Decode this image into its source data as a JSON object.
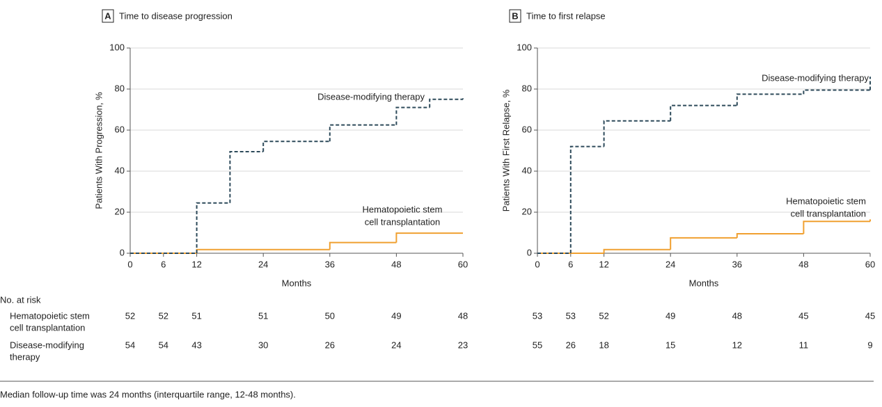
{
  "chart_data": [
    {
      "type": "step",
      "panel": "A",
      "title": "Time to disease progression",
      "x_label": "Months",
      "y_label": "Patients With Progression, %",
      "xlim": [
        0,
        60
      ],
      "xticks": [
        0,
        6,
        12,
        24,
        36,
        48,
        60
      ],
      "ylim": [
        0,
        100
      ],
      "yticks": [
        0,
        20,
        40,
        60,
        80,
        100
      ],
      "grid": true,
      "series": [
        {
          "label_lines": [
            "Hematopoietic stem",
            "cell transplantation"
          ],
          "color": "#f0a030",
          "dashed": false,
          "x": [
            0,
            12,
            36,
            48,
            60
          ],
          "values": [
            0,
            1.8,
            5.2,
            9.8,
            9.8
          ],
          "at_risk": [
            52,
            52,
            51,
            51,
            50,
            49,
            48
          ]
        },
        {
          "label_lines": [
            "Disease-modifying therapy"
          ],
          "color": "#2d4a5a",
          "dashed": true,
          "x": [
            0,
            12,
            18,
            24,
            36,
            48,
            54,
            60
          ],
          "values": [
            0,
            24.5,
            49.5,
            54.5,
            62.5,
            71,
            75,
            75.5
          ],
          "at_risk": [
            54,
            54,
            43,
            30,
            26,
            24,
            23
          ]
        }
      ]
    },
    {
      "type": "step",
      "panel": "B",
      "title": "Time to first relapse",
      "x_label": "Months",
      "y_label": "Patients With First Relapse, %",
      "xlim": [
        0,
        60
      ],
      "xticks": [
        0,
        6,
        12,
        24,
        36,
        48,
        60
      ],
      "ylim": [
        0,
        100
      ],
      "yticks": [
        0,
        20,
        40,
        60,
        80,
        100
      ],
      "grid": true,
      "series": [
        {
          "label_lines": [
            "Hematopoietic stem",
            "cell transplantation"
          ],
          "color": "#f0a030",
          "dashed": false,
          "x": [
            0,
            12,
            24,
            36,
            48,
            60
          ],
          "values": [
            0,
            1.8,
            7.5,
            9.5,
            15.5,
            16.5
          ],
          "at_risk": [
            53,
            53,
            52,
            49,
            48,
            45,
            45
          ]
        },
        {
          "label_lines": [
            "Disease-modifying therapy"
          ],
          "color": "#2d4a5a",
          "dashed": true,
          "x": [
            0,
            6,
            12,
            24,
            36,
            48,
            60
          ],
          "values": [
            0,
            52,
            64.5,
            72,
            77.5,
            79.5,
            86
          ],
          "at_risk": [
            55,
            26,
            18,
            15,
            12,
            11,
            9
          ]
        }
      ]
    }
  ],
  "risk_table": {
    "title": "No. at risk",
    "row_labels": [
      [
        "Hematopoietic stem",
        "cell transplantation"
      ],
      [
        "Disease-modifying",
        "therapy"
      ]
    ]
  },
  "footnote": "Median follow-up time was 24 months (interquartile range, 12-48 months)."
}
